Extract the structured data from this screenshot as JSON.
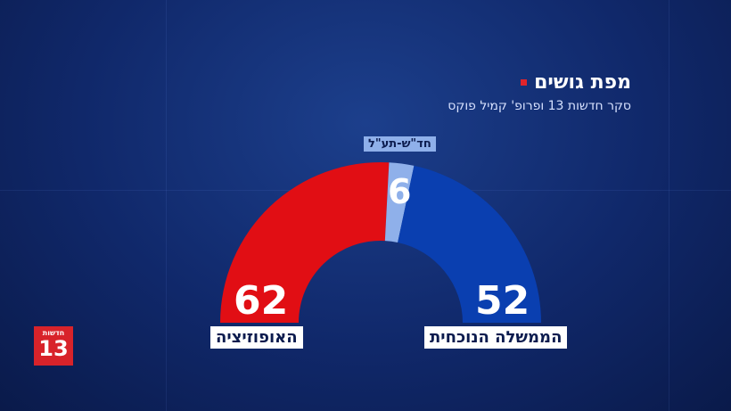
{
  "title": "מפת גושים",
  "subtitle": "סקר חדשות 13 ופרופ' קמיל פוקס",
  "colors": {
    "opposition": "#e10e14",
    "neutral": "#8fb0ea",
    "coalition": "#0a3fb0",
    "accent": "#e0242b"
  },
  "logo": {
    "top_text": "חדשות",
    "number": "13"
  },
  "chart_data": {
    "type": "pie",
    "variant": "semicircle",
    "categories": [
      "האופוזיציה",
      "חד\"ש-תע\"ל",
      "הממשלה הנוכחית"
    ],
    "values": [
      62,
      6,
      52
    ],
    "labels": [
      "62",
      "6",
      "52"
    ]
  }
}
